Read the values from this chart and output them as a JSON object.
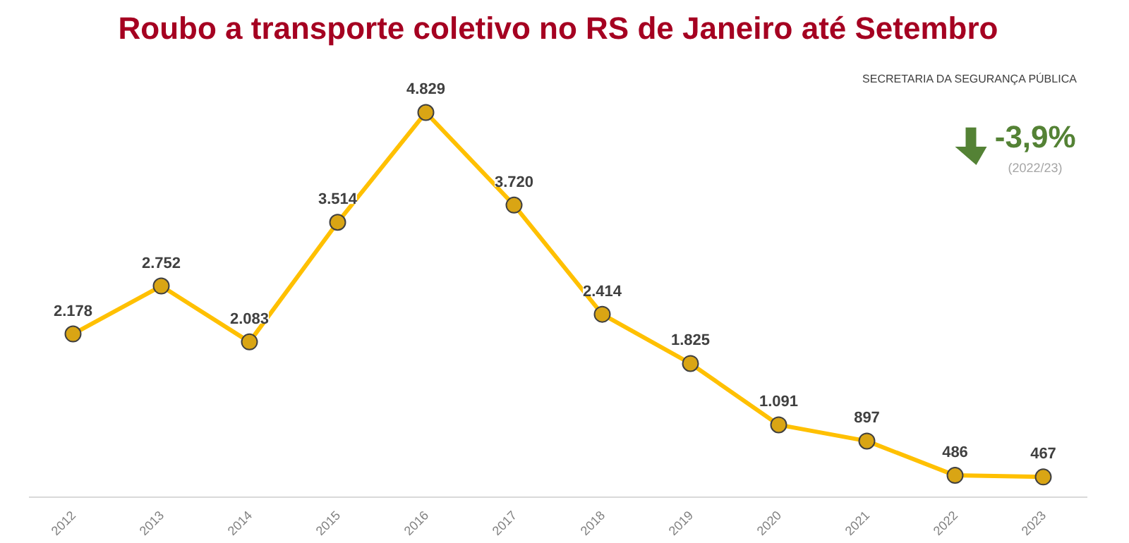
{
  "chart_data": {
    "type": "line",
    "title": "Roubo a transporte coletivo no RS de Janeiro até Setembro",
    "categories": [
      "2012",
      "2013",
      "2014",
      "2015",
      "2016",
      "2017",
      "2018",
      "2019",
      "2020",
      "2021",
      "2022",
      "2023"
    ],
    "series": [
      {
        "color": "#ffc000",
        "values": [
          2178,
          2752,
          2083,
          3514,
          4829,
          3720,
          2414,
          1825,
          1091,
          897,
          486,
          467
        ],
        "value_labels": [
          "2.178",
          "2.752",
          "2.083",
          "3.514",
          "4.829",
          "3.720",
          "2.414",
          "1.825",
          "1.091",
          "897",
          "486",
          "467"
        ]
      }
    ],
    "annotations": [
      "-3,9%",
      "(2022/23)",
      "SECRETARIA DA SEGURANÇA PÚBLICA"
    ],
    "marker": "circle",
    "line_style": "solid",
    "grid": false,
    "tick_labels": "x"
  }
}
